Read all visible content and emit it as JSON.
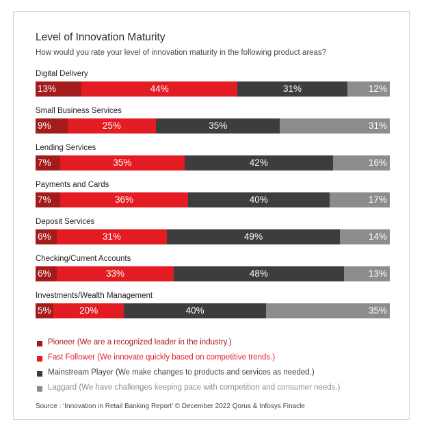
{
  "chart_data": {
    "type": "bar",
    "orientation": "horizontal-stacked-100",
    "title": "Level of Innovation Maturity",
    "subtitle": "How would you rate your level of innovation maturity in the following product areas?",
    "categories": [
      "Digital Delivery",
      "Small Business Services",
      "Lending Services",
      "Payments and Cards",
      "Deposit Services",
      "Checking/Current Accounts",
      "Investments/Wealth Management"
    ],
    "series": [
      {
        "name": "Pioneer",
        "color": "#a31b1b",
        "values": [
          13,
          9,
          7,
          7,
          6,
          6,
          5
        ]
      },
      {
        "name": "Fast Follower",
        "color": "#e31b23",
        "values": [
          44,
          25,
          35,
          36,
          31,
          33,
          20
        ]
      },
      {
        "name": "Mainstream Player",
        "color": "#3d3d3d",
        "values": [
          31,
          35,
          42,
          40,
          49,
          48,
          40
        ]
      },
      {
        "name": "Laggard",
        "color": "#8c8c8c",
        "values": [
          12,
          31,
          16,
          17,
          14,
          13,
          35
        ]
      }
    ],
    "legend": [
      {
        "label": "Pioneer (We are a recognized leader in the industry.)",
        "color": "#a31b1b",
        "text_color": "#a31b1b"
      },
      {
        "label": "Fast Follower (We innovate quickly based on competitive trends.)",
        "color": "#e31b23",
        "text_color": "#e31b23"
      },
      {
        "label": "Mainstream Player (We make changes to products and services as needed.)",
        "color": "#3d3d3d",
        "text_color": "#3d3d3d"
      },
      {
        "label": "Laggard (We have challenges keeping pace with competition and consumer needs.)",
        "color": "#8c8c8c",
        "text_color": "#8c8c8c"
      }
    ],
    "unit": "%"
  },
  "source": "Source : ‘Innovation in Retail Banking Report’ © December 2022 Qorus & Infosys Finacle"
}
